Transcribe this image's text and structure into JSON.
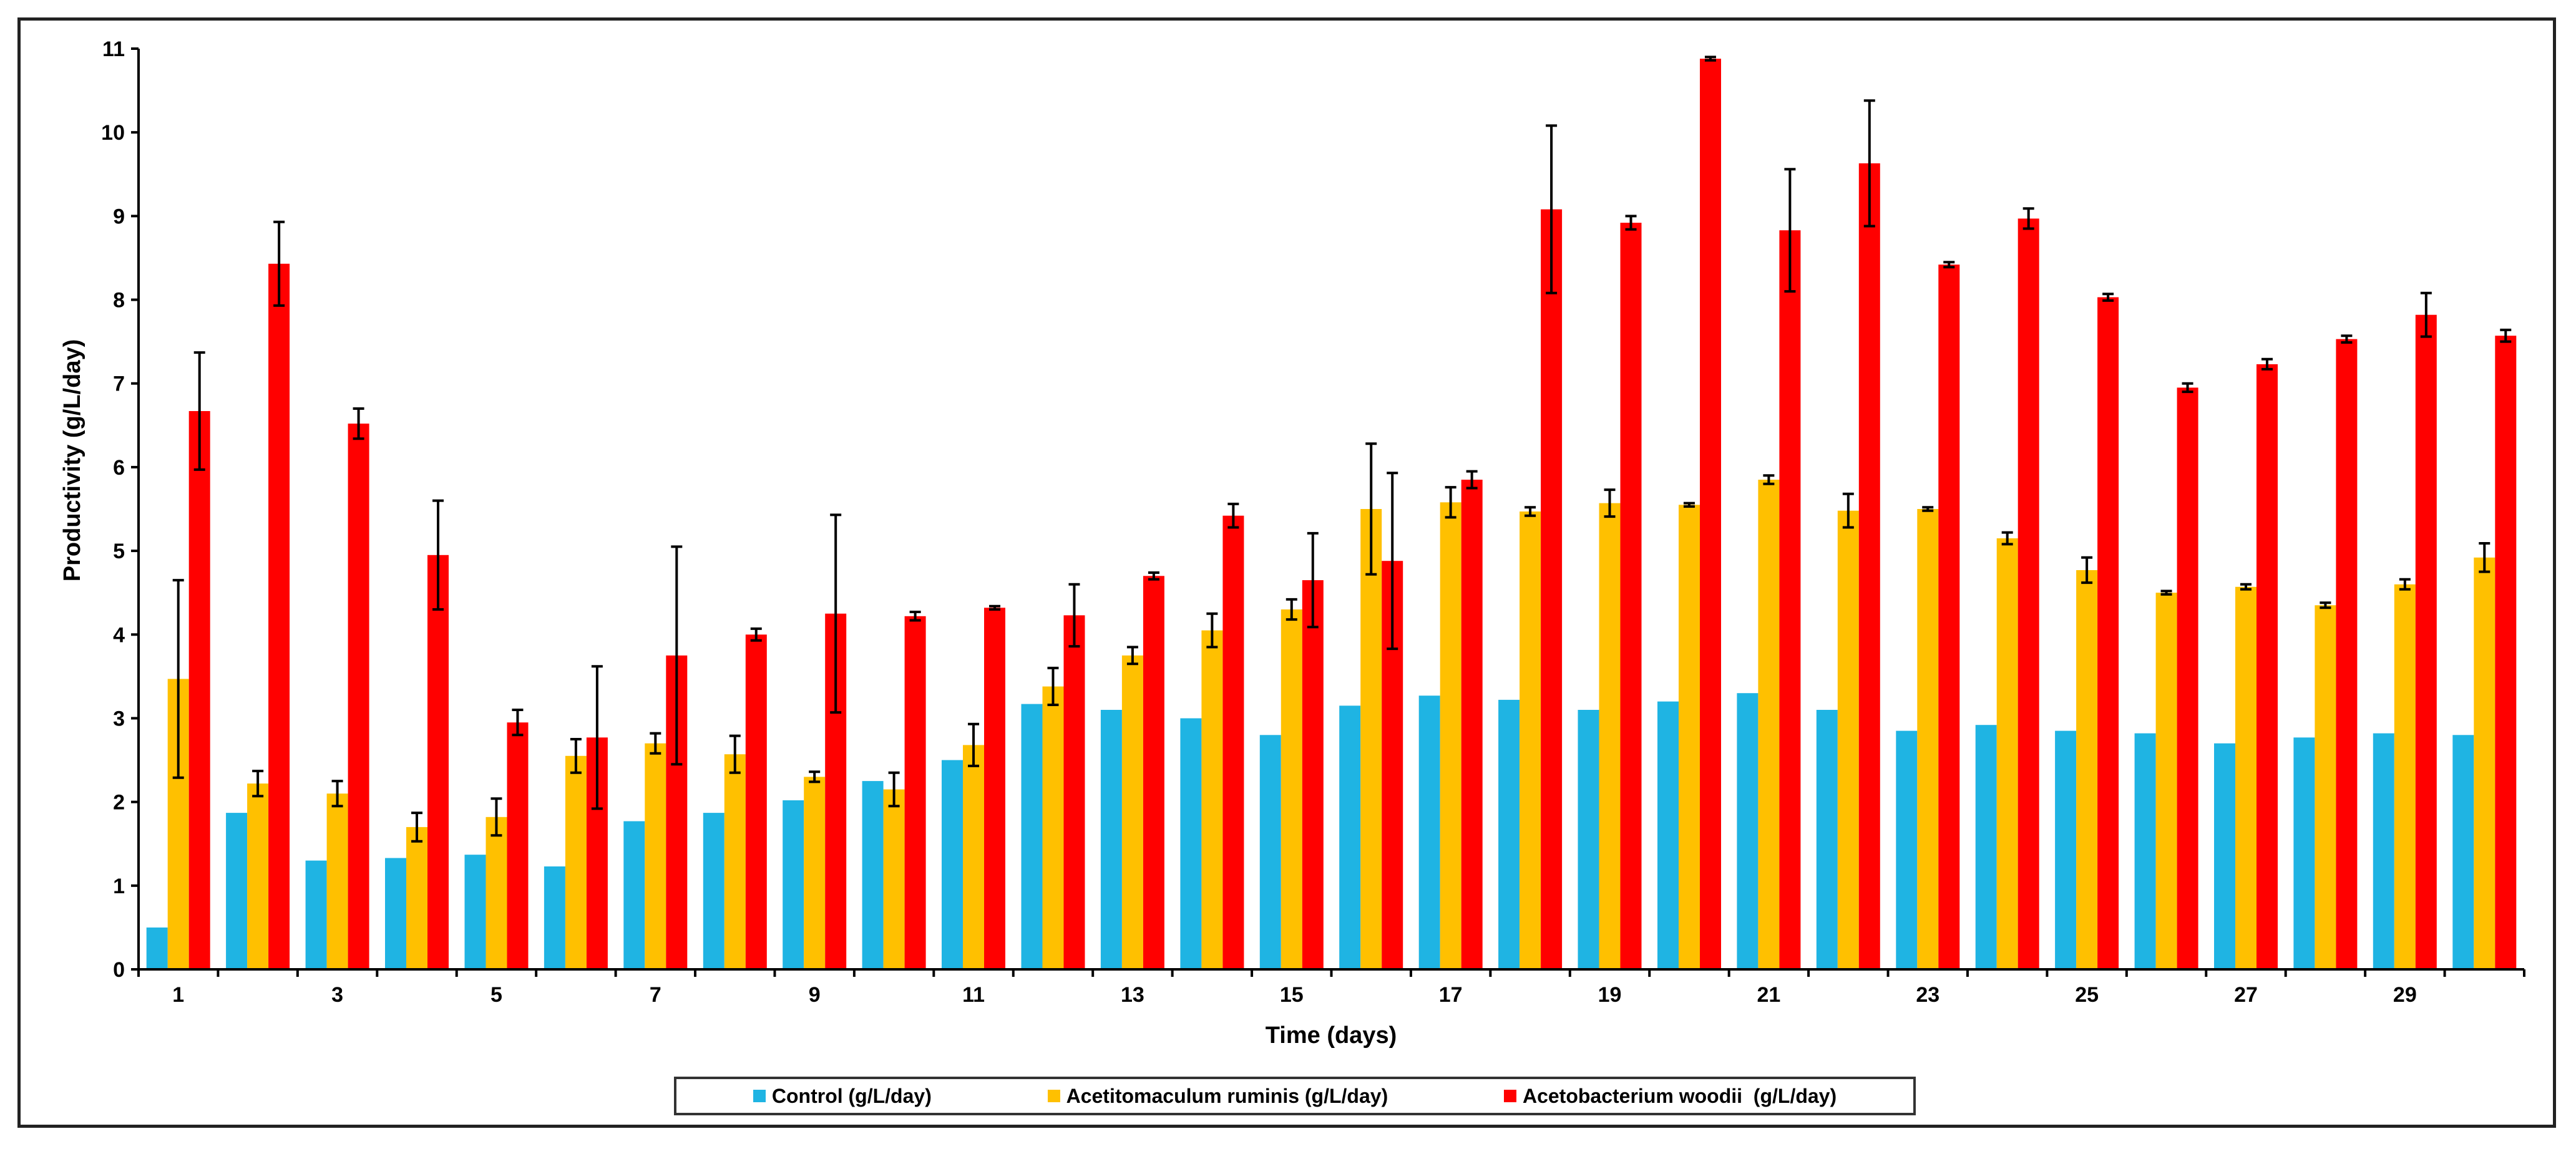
{
  "chart_data": {
    "type": "bar",
    "title": "",
    "xlabel": "Time (days)",
    "ylabel": "Productivity (g/L/day)",
    "ylim": [
      0,
      11
    ],
    "yticks": [
      "0",
      "1",
      "2",
      "3",
      "4",
      "5",
      "6",
      "7",
      "8",
      "9",
      "10",
      "11"
    ],
    "categories": [
      "1",
      "2",
      "3",
      "4",
      "5",
      "6",
      "7",
      "8",
      "9",
      "10",
      "11",
      "12",
      "13",
      "14",
      "15",
      "16",
      "17",
      "18",
      "19",
      "20",
      "21",
      "22",
      "23",
      "24",
      "25",
      "26",
      "27",
      "28",
      "29",
      "30"
    ],
    "xtick_labels": [
      "1",
      "3",
      "5",
      "7",
      "9",
      "11",
      "13",
      "15",
      "17",
      "19",
      "21",
      "23",
      "25",
      "27",
      "29"
    ],
    "legend_position": "bottom",
    "series": [
      {
        "name": "Control (g/L/day)",
        "color": "#1FB4E3",
        "values": [
          0.5,
          1.87,
          1.3,
          1.33,
          1.37,
          1.23,
          1.77,
          1.87,
          2.02,
          2.25,
          2.5,
          3.17,
          3.1,
          3.0,
          2.8,
          3.15,
          3.27,
          3.22,
          3.1,
          3.2,
          3.3,
          3.1,
          2.85,
          2.92,
          2.85,
          2.82,
          2.7,
          2.77,
          2.82,
          2.8
        ],
        "errors": [
          0,
          0,
          0,
          0,
          0,
          0,
          0,
          0,
          0,
          0,
          0,
          0,
          0,
          0,
          0,
          0,
          0,
          0,
          0,
          0,
          0,
          0,
          0,
          0,
          0,
          0,
          0,
          0,
          0,
          0
        ]
      },
      {
        "name": "Acetitomaculum ruminis (g/L/day)",
        "color": "#FFC000",
        "values": [
          3.47,
          2.22,
          2.1,
          1.7,
          1.82,
          2.55,
          2.7,
          2.57,
          2.3,
          2.15,
          2.68,
          3.38,
          3.75,
          4.05,
          4.3,
          5.5,
          5.58,
          5.47,
          5.57,
          5.55,
          5.85,
          5.48,
          5.5,
          5.15,
          4.77,
          4.5,
          4.57,
          4.35,
          4.6,
          4.92
        ],
        "errors": [
          1.18,
          0.15,
          0.15,
          0.17,
          0.22,
          0.2,
          0.12,
          0.22,
          0.06,
          0.2,
          0.25,
          0.22,
          0.1,
          0.2,
          0.12,
          0.78,
          0.18,
          0.05,
          0.16,
          0.02,
          0.05,
          0.2,
          0.02,
          0.07,
          0.15,
          0.02,
          0.03,
          0.03,
          0.06,
          0.17
        ]
      },
      {
        "name": "Acetobacterium woodii  (g/L/day)",
        "color": "#FF0000",
        "values": [
          6.67,
          8.43,
          6.52,
          4.95,
          2.95,
          2.77,
          3.75,
          4.0,
          4.25,
          4.22,
          4.32,
          4.23,
          4.7,
          5.42,
          4.65,
          4.88,
          5.85,
          9.08,
          8.92,
          10.88,
          8.83,
          9.63,
          8.42,
          8.97,
          8.03,
          6.95,
          7.23,
          7.53,
          7.82,
          7.57
        ],
        "errors": [
          0.7,
          0.5,
          0.18,
          0.65,
          0.15,
          0.85,
          1.3,
          0.07,
          1.18,
          0.05,
          0.02,
          0.37,
          0.04,
          0.14,
          0.56,
          1.05,
          0.1,
          1.0,
          0.08,
          0.02,
          0.73,
          0.75,
          0.03,
          0.12,
          0.04,
          0.05,
          0.06,
          0.04,
          0.26,
          0.07
        ]
      }
    ]
  }
}
